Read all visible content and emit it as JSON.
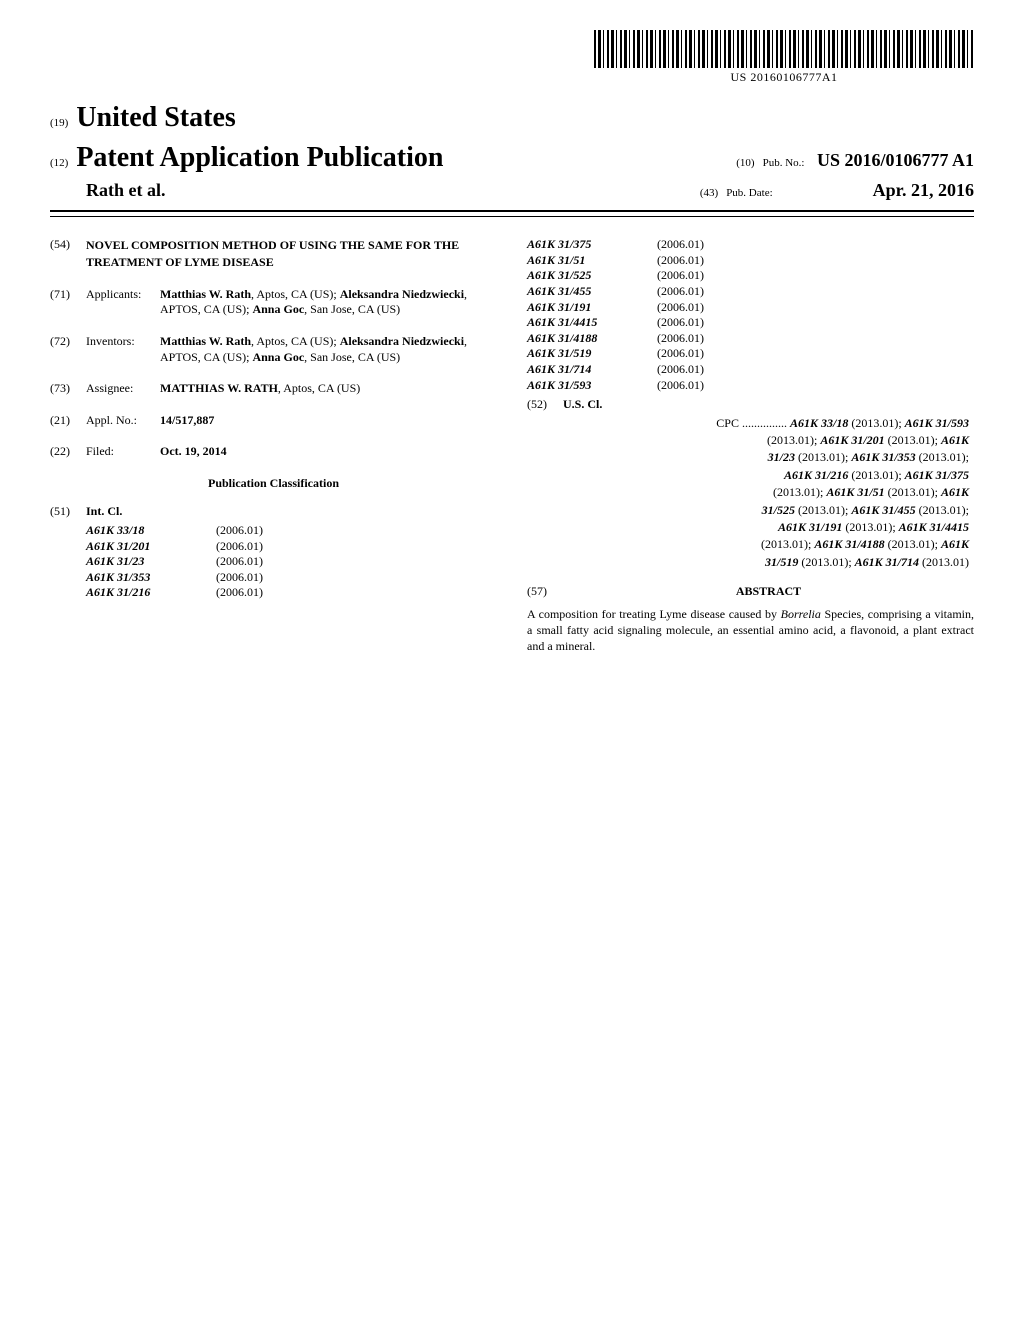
{
  "barcode": {
    "text": "US 20160106777A1"
  },
  "header": {
    "num19": "(19)",
    "country": "United States",
    "num12": "(12)",
    "pubTitle": "Patent Application Publication",
    "num10": "(10)",
    "pubNoLabel": "Pub. No.:",
    "pubNoValue": "US 2016/0106777 A1",
    "authors": "Rath et al.",
    "num43": "(43)",
    "pubDateLabel": "Pub. Date:",
    "pubDateValue": "Apr. 21, 2016"
  },
  "fields": {
    "f54": {
      "num": "(54)",
      "title": "NOVEL COMPOSITION METHOD OF USING THE SAME FOR THE TREATMENT OF LYME DISEASE"
    },
    "f71": {
      "num": "(71)",
      "label": "Applicants:",
      "content": "Matthias W. Rath, Aptos, CA (US); Aleksandra Niedzwiecki, APTOS, CA (US); Anna Goc, San Jose, CA (US)"
    },
    "f72": {
      "num": "(72)",
      "label": "Inventors:",
      "content": "Matthias W. Rath, Aptos, CA (US); Aleksandra Niedzwiecki, APTOS, CA (US); Anna Goc, San Jose, CA (US)"
    },
    "f73": {
      "num": "(73)",
      "label": "Assignee:",
      "content": "MATTHIAS W. RATH, Aptos, CA (US)"
    },
    "f21": {
      "num": "(21)",
      "label": "Appl. No.:",
      "content": "14/517,887"
    },
    "f22": {
      "num": "(22)",
      "label": "Filed:",
      "content": "Oct. 19, 2014"
    },
    "pubClassHeading": "Publication Classification",
    "f51": {
      "num": "(51)",
      "label": "Int. Cl."
    },
    "f52": {
      "num": "(52)",
      "label": "U.S. Cl."
    },
    "f57": {
      "num": "(57)",
      "heading": "ABSTRACT"
    }
  },
  "intClLeft": [
    {
      "code": "A61K 33/18",
      "year": "(2006.01)"
    },
    {
      "code": "A61K 31/201",
      "year": "(2006.01)"
    },
    {
      "code": "A61K 31/23",
      "year": "(2006.01)"
    },
    {
      "code": "A61K 31/353",
      "year": "(2006.01)"
    },
    {
      "code": "A61K 31/216",
      "year": "(2006.01)"
    }
  ],
  "intClRight": [
    {
      "code": "A61K 31/375",
      "year": "(2006.01)"
    },
    {
      "code": "A61K 31/51",
      "year": "(2006.01)"
    },
    {
      "code": "A61K 31/525",
      "year": "(2006.01)"
    },
    {
      "code": "A61K 31/455",
      "year": "(2006.01)"
    },
    {
      "code": "A61K 31/191",
      "year": "(2006.01)"
    },
    {
      "code": "A61K 31/4415",
      "year": "(2006.01)"
    },
    {
      "code": "A61K 31/4188",
      "year": "(2006.01)"
    },
    {
      "code": "A61K 31/519",
      "year": "(2006.01)"
    },
    {
      "code": "A61K 31/714",
      "year": "(2006.01)"
    },
    {
      "code": "A61K 31/593",
      "year": "(2006.01)"
    }
  ],
  "cpc": {
    "prefix": "CPC ...............",
    "codes": [
      {
        "c": "A61K 33/18",
        "y": "(2013.01)"
      },
      {
        "c": "A61K 31/593",
        "y": "(2013.01)"
      },
      {
        "c": "A61K 31/201",
        "y": "(2013.01)"
      },
      {
        "c": "A61K 31/23",
        "y": "(2013.01)"
      },
      {
        "c": "A61K 31/353",
        "y": "(2013.01)"
      },
      {
        "c": "A61K 31/216",
        "y": "(2013.01)"
      },
      {
        "c": "A61K 31/375",
        "y": "(2013.01)"
      },
      {
        "c": "A61K 31/51",
        "y": "(2013.01)"
      },
      {
        "c": "A61K 31/525",
        "y": "(2013.01)"
      },
      {
        "c": "A61K 31/455",
        "y": "(2013.01)"
      },
      {
        "c": "A61K 31/191",
        "y": "(2013.01)"
      },
      {
        "c": "A61K 31/4415",
        "y": "(2013.01)"
      },
      {
        "c": "A61K 31/4188",
        "y": "(2013.01)"
      },
      {
        "c": "A61K 31/519",
        "y": "(2013.01)"
      },
      {
        "c": "A61K 31/714",
        "y": "(2013.01)"
      }
    ]
  },
  "abstract": {
    "text": "A composition for treating Lyme disease caused by Borrelia Species, comprising a vitamin, a small fatty acid signaling molecule, an essential amino acid, a flavonoid, a plant extract and a mineral."
  }
}
